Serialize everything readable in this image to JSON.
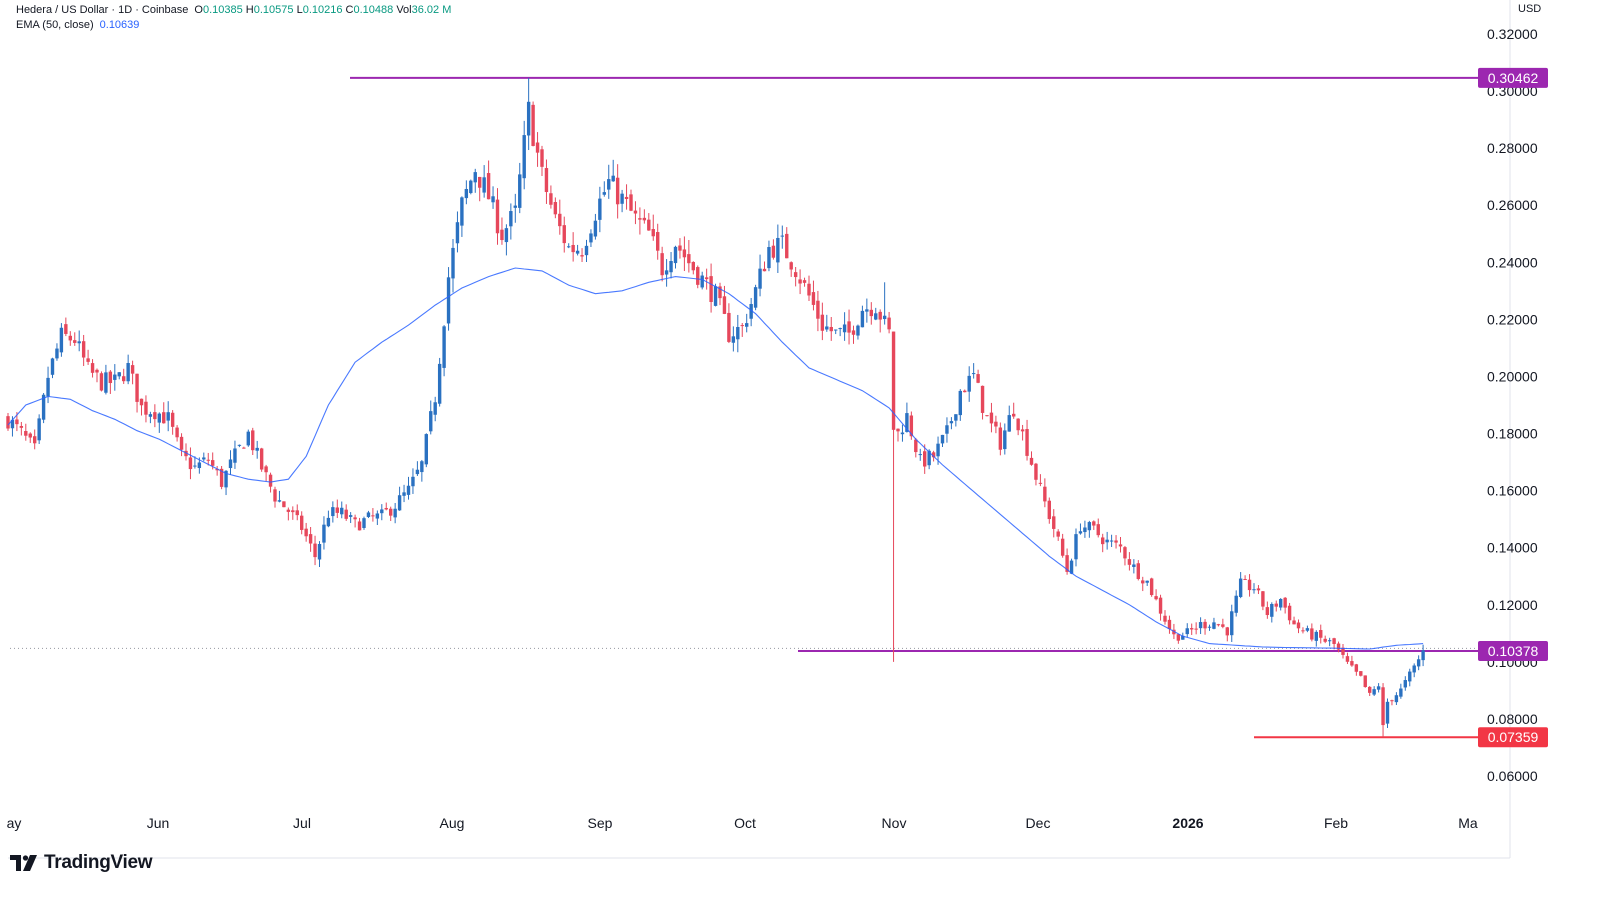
{
  "header": {
    "symbol": "Hedera / US Dollar · 1D · Coinbase",
    "open_label": "O",
    "open": "0.10385",
    "high_label": "H",
    "high": "0.10575",
    "low_label": "L",
    "low": "0.10216",
    "close_label": "C",
    "close": "0.10488",
    "vol_label": "Vol",
    "volume": "36.02 M",
    "ema_label": "EMA (50, close)",
    "ema_value": "0.10639"
  },
  "currency": "USD",
  "brand": "TradingView",
  "colors": {
    "up": "#089981",
    "down": "#f23645",
    "ema": "#2962ff",
    "resistance": "#9c27b0",
    "support": "#f23645",
    "up_candle": "#2a71c1",
    "down_candle": "#e6475b"
  },
  "chart_data": {
    "type": "candlestick",
    "title": "Hedera / US Dollar · 1D · Coinbase",
    "y_axis": {
      "ticks": [
        "0.06000",
        "0.08000",
        "0.10000",
        "0.12000",
        "0.14000",
        "0.16000",
        "0.18000",
        "0.20000",
        "0.22000",
        "0.24000",
        "0.26000",
        "0.28000",
        "0.30000",
        "0.32000"
      ],
      "range": [
        0.05,
        0.323
      ],
      "unit": "USD"
    },
    "x_axis": {
      "labels": [
        {
          "text": "ay",
          "bold": false
        },
        {
          "text": "Jun",
          "bold": false
        },
        {
          "text": "Jul",
          "bold": false
        },
        {
          "text": "Aug",
          "bold": false
        },
        {
          "text": "Sep",
          "bold": false
        },
        {
          "text": "Oct",
          "bold": false
        },
        {
          "text": "Nov",
          "bold": false
        },
        {
          "text": "Dec",
          "bold": false
        },
        {
          "text": "2026",
          "bold": true
        },
        {
          "text": "Feb",
          "bold": false
        },
        {
          "text": "Ma",
          "bold": false
        }
      ]
    },
    "price_path": [
      [
        0,
        0.185
      ],
      [
        3,
        0.18
      ],
      [
        6,
        0.174
      ],
      [
        9,
        0.2
      ],
      [
        12,
        0.214
      ],
      [
        15,
        0.213
      ],
      [
        18,
        0.202
      ],
      [
        21,
        0.198
      ],
      [
        24,
        0.198
      ],
      [
        27,
        0.203
      ],
      [
        30,
        0.189
      ],
      [
        33,
        0.188
      ],
      [
        36,
        0.185
      ],
      [
        39,
        0.172
      ],
      [
        42,
        0.168
      ],
      [
        45,
        0.171
      ],
      [
        48,
        0.163
      ],
      [
        51,
        0.172
      ],
      [
        54,
        0.18
      ],
      [
        57,
        0.168
      ],
      [
        60,
        0.158
      ],
      [
        63,
        0.153
      ],
      [
        66,
        0.147
      ],
      [
        69,
        0.137
      ],
      [
        72,
        0.152
      ],
      [
        75,
        0.152
      ],
      [
        78,
        0.148
      ],
      [
        81,
        0.15
      ],
      [
        84,
        0.151
      ],
      [
        87,
        0.155
      ],
      [
        90,
        0.16
      ],
      [
        93,
        0.169
      ],
      [
        96,
        0.193
      ],
      [
        99,
        0.235
      ],
      [
        102,
        0.26
      ],
      [
        105,
        0.273
      ],
      [
        108,
        0.263
      ],
      [
        111,
        0.25
      ],
      [
        114,
        0.257
      ],
      [
        117,
        0.293
      ],
      [
        120,
        0.27
      ],
      [
        123,
        0.255
      ],
      [
        126,
        0.245
      ],
      [
        129,
        0.245
      ],
      [
        132,
        0.258
      ],
      [
        135,
        0.268
      ],
      [
        138,
        0.262
      ],
      [
        141,
        0.255
      ],
      [
        144,
        0.25
      ],
      [
        147,
        0.238
      ],
      [
        150,
        0.247
      ],
      [
        153,
        0.24
      ],
      [
        156,
        0.234
      ],
      [
        159,
        0.228
      ],
      [
        162,
        0.215
      ],
      [
        165,
        0.217
      ],
      [
        168,
        0.23
      ],
      [
        171,
        0.245
      ],
      [
        174,
        0.246
      ],
      [
        177,
        0.238
      ],
      [
        180,
        0.228
      ],
      [
        183,
        0.218
      ],
      [
        186,
        0.215
      ],
      [
        189,
        0.215
      ],
      [
        192,
        0.224
      ],
      [
        195,
        0.225
      ],
      [
        198,
        0.215
      ],
      [
        199,
        0.182
      ],
      [
        200,
        0.18
      ],
      [
        202,
        0.186
      ],
      [
        205,
        0.17
      ],
      [
        208,
        0.172
      ],
      [
        211,
        0.18
      ],
      [
        214,
        0.195
      ],
      [
        217,
        0.2
      ],
      [
        220,
        0.185
      ],
      [
        223,
        0.177
      ],
      [
        226,
        0.189
      ],
      [
        229,
        0.175
      ],
      [
        232,
        0.16
      ],
      [
        235,
        0.147
      ],
      [
        238,
        0.132
      ],
      [
        241,
        0.148
      ],
      [
        244,
        0.146
      ],
      [
        247,
        0.142
      ],
      [
        250,
        0.14
      ],
      [
        253,
        0.133
      ],
      [
        256,
        0.128
      ],
      [
        259,
        0.118
      ],
      [
        262,
        0.109
      ],
      [
        265,
        0.11
      ],
      [
        268,
        0.113
      ],
      [
        271,
        0.114
      ],
      [
        274,
        0.111
      ],
      [
        277,
        0.127
      ],
      [
        280,
        0.126
      ],
      [
        283,
        0.117
      ],
      [
        286,
        0.122
      ],
      [
        289,
        0.113
      ],
      [
        292,
        0.11
      ],
      [
        295,
        0.108
      ],
      [
        298,
        0.106
      ],
      [
        301,
        0.099
      ],
      [
        304,
        0.094
      ],
      [
        306,
        0.088
      ],
      [
        308,
        0.092
      ],
      [
        309,
        0.077
      ],
      [
        310,
        0.086
      ],
      [
        313,
        0.09
      ],
      [
        316,
        0.098
      ],
      [
        318,
        0.1037
      ]
    ],
    "ema_path": [
      [
        0,
        0.183
      ],
      [
        4,
        0.19
      ],
      [
        9,
        0.193
      ],
      [
        14,
        0.192
      ],
      [
        19,
        0.188
      ],
      [
        24,
        0.185
      ],
      [
        29,
        0.181
      ],
      [
        34,
        0.178
      ],
      [
        39,
        0.174
      ],
      [
        44,
        0.17
      ],
      [
        49,
        0.166
      ],
      [
        54,
        0.164
      ],
      [
        59,
        0.163
      ],
      [
        63,
        0.164
      ],
      [
        67,
        0.172
      ],
      [
        72,
        0.19
      ],
      [
        78,
        0.205
      ],
      [
        84,
        0.212
      ],
      [
        90,
        0.218
      ],
      [
        96,
        0.225
      ],
      [
        102,
        0.231
      ],
      [
        108,
        0.235
      ],
      [
        114,
        0.238
      ],
      [
        120,
        0.237
      ],
      [
        126,
        0.232
      ],
      [
        132,
        0.229
      ],
      [
        138,
        0.23
      ],
      [
        144,
        0.233
      ],
      [
        150,
        0.235
      ],
      [
        156,
        0.234
      ],
      [
        162,
        0.229
      ],
      [
        168,
        0.222
      ],
      [
        174,
        0.212
      ],
      [
        180,
        0.203
      ],
      [
        186,
        0.199
      ],
      [
        192,
        0.195
      ],
      [
        198,
        0.189
      ],
      [
        204,
        0.178
      ],
      [
        210,
        0.169
      ],
      [
        216,
        0.161
      ],
      [
        222,
        0.153
      ],
      [
        228,
        0.145
      ],
      [
        234,
        0.137
      ],
      [
        240,
        0.13
      ],
      [
        246,
        0.125
      ],
      [
        252,
        0.12
      ],
      [
        258,
        0.114
      ],
      [
        264,
        0.109
      ],
      [
        270,
        0.1064
      ],
      [
        276,
        0.1058
      ],
      [
        282,
        0.1052
      ],
      [
        288,
        0.105
      ],
      [
        294,
        0.1049
      ],
      [
        300,
        0.1047
      ],
      [
        306,
        0.1045
      ],
      [
        312,
        0.1058
      ],
      [
        318,
        0.10639
      ]
    ],
    "levels": [
      {
        "name": "resistance",
        "value": 0.30462,
        "label": "0.30462",
        "color": "#9c27b0"
      },
      {
        "name": "current",
        "value": 0.10378,
        "label": "0.10378",
        "color": "#9c27b0"
      },
      {
        "name": "support",
        "value": 0.07359,
        "label": "0.07359",
        "color": "#f23645"
      }
    ],
    "grid": false,
    "legend": "top-left"
  }
}
